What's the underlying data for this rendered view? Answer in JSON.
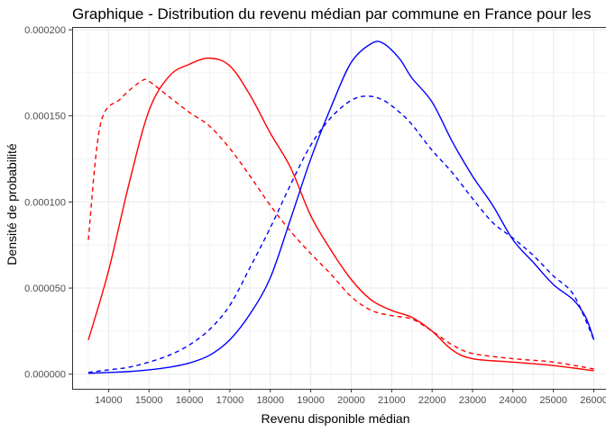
{
  "chart_data": {
    "type": "line",
    "title": "Graphique - Distribution du revenu médian par commune en France pour les",
    "xlabel": "Revenu disponible médian",
    "ylabel": "Densité de probabilité",
    "xlim": [
      13100,
      26300
    ],
    "ylim": [
      -8.5e-06,
      0.0002016
    ],
    "x_ticks": [
      14000,
      15000,
      16000,
      17000,
      18000,
      19000,
      20000,
      21000,
      22000,
      23000,
      24000,
      25000,
      26000
    ],
    "x_tick_labels": [
      "14000",
      "15000",
      "16000",
      "17000",
      "18000",
      "19000",
      "20000",
      "21000",
      "22000",
      "23000",
      "24000",
      "25000",
      "26000"
    ],
    "y_ticks": [
      0,
      5e-05,
      0.0001,
      0.00015,
      0.0002
    ],
    "y_tick_labels": [
      "0.000000",
      "0.000050",
      "0.000100",
      "0.000150",
      "0.000200"
    ],
    "grid": true,
    "legend": "none",
    "series": [
      {
        "color": "#FF0000",
        "linestyle": "solid",
        "points": [
          [
            13500,
            1.98e-05
          ],
          [
            14000,
            6e-05
          ],
          [
            14500,
            0.00011
          ],
          [
            15000,
            0.000153
          ],
          [
            15500,
            0.000173
          ],
          [
            16000,
            0.00018
          ],
          [
            16500,
            0.0001835
          ],
          [
            17000,
            0.000179
          ],
          [
            17500,
            0.000162
          ],
          [
            18000,
            0.00014
          ],
          [
            18500,
            0.00012
          ],
          [
            19000,
            9.2e-05
          ],
          [
            19500,
            7.2e-05
          ],
          [
            20000,
            5.5e-05
          ],
          [
            20500,
            4.3e-05
          ],
          [
            21000,
            3.7e-05
          ],
          [
            21500,
            3.3e-05
          ],
          [
            22000,
            2.5e-05
          ],
          [
            22500,
            1.4e-05
          ],
          [
            23000,
            9e-06
          ],
          [
            24000,
            7e-06
          ],
          [
            25000,
            5e-06
          ],
          [
            26000,
            2e-06
          ]
        ]
      },
      {
        "color": "#FF0000",
        "linestyle": "dashed",
        "points": [
          [
            13500,
            7.8e-05
          ],
          [
            13800,
            0.000145
          ],
          [
            14300,
            0.00016
          ],
          [
            14800,
            0.00017
          ],
          [
            15000,
            0.00017
          ],
          [
            15500,
            0.000161
          ],
          [
            16000,
            0.000152
          ],
          [
            16500,
            0.000144
          ],
          [
            17000,
            0.000131
          ],
          [
            17500,
            0.000115
          ],
          [
            18000,
            9.8e-05
          ],
          [
            18500,
            8.3e-05
          ],
          [
            19000,
            7e-05
          ],
          [
            19500,
            5.8e-05
          ],
          [
            20000,
            4.5e-05
          ],
          [
            20500,
            3.7e-05
          ],
          [
            21000,
            3.4e-05
          ],
          [
            21500,
            3.2e-05
          ],
          [
            22000,
            2.5e-05
          ],
          [
            22500,
            1.7e-05
          ],
          [
            23000,
            1.2e-05
          ],
          [
            24000,
            9e-06
          ],
          [
            25000,
            7e-06
          ],
          [
            26000,
            3e-06
          ]
        ]
      },
      {
        "color": "#0000FF",
        "linestyle": "solid",
        "points": [
          [
            13500,
            5e-07
          ],
          [
            14000,
            1e-06
          ],
          [
            14500,
            1.5e-06
          ],
          [
            15000,
            2.5e-06
          ],
          [
            15500,
            4e-06
          ],
          [
            16000,
            6.5e-06
          ],
          [
            16500,
            1.1e-05
          ],
          [
            17000,
            2e-05
          ],
          [
            17500,
            3.5e-05
          ],
          [
            18000,
            5.6e-05
          ],
          [
            18500,
            9e-05
          ],
          [
            19000,
            0.000125
          ],
          [
            19500,
            0.000155
          ],
          [
            20000,
            0.000181
          ],
          [
            20500,
            0.000192
          ],
          [
            20800,
            0.000192
          ],
          [
            21200,
            0.000183
          ],
          [
            21500,
            0.000172
          ],
          [
            22000,
            0.000158
          ],
          [
            22500,
            0.000135
          ],
          [
            23000,
            0.000115
          ],
          [
            23500,
            9.8e-05
          ],
          [
            24000,
            7.8e-05
          ],
          [
            24500,
            6.5e-05
          ],
          [
            25000,
            5.2e-05
          ],
          [
            25500,
            4.3e-05
          ],
          [
            25800,
            3.3e-05
          ],
          [
            26000,
            2e-05
          ]
        ]
      },
      {
        "color": "#0000FF",
        "linestyle": "dashed",
        "points": [
          [
            13500,
            1e-06
          ],
          [
            14000,
            2.5e-06
          ],
          [
            14500,
            4e-06
          ],
          [
            15000,
            7e-06
          ],
          [
            15500,
            1.1e-05
          ],
          [
            16000,
            1.7e-05
          ],
          [
            16500,
            2.6e-05
          ],
          [
            17000,
            4e-05
          ],
          [
            17500,
            6.2e-05
          ],
          [
            18000,
            8.5e-05
          ],
          [
            18500,
            0.00011
          ],
          [
            19000,
            0.000133
          ],
          [
            19500,
            0.000149
          ],
          [
            20000,
            0.000159
          ],
          [
            20400,
            0.0001615
          ],
          [
            20800,
            0.000159
          ],
          [
            21200,
            0.000152
          ],
          [
            21500,
            0.000145
          ],
          [
            22000,
            0.00013
          ],
          [
            22500,
            0.000117
          ],
          [
            23000,
            0.000102
          ],
          [
            23500,
            8.8e-05
          ],
          [
            24000,
            7.9e-05
          ],
          [
            24500,
            6.9e-05
          ],
          [
            25000,
            5.7e-05
          ],
          [
            25500,
            4.6e-05
          ],
          [
            26000,
            2e-05
          ]
        ]
      }
    ]
  }
}
